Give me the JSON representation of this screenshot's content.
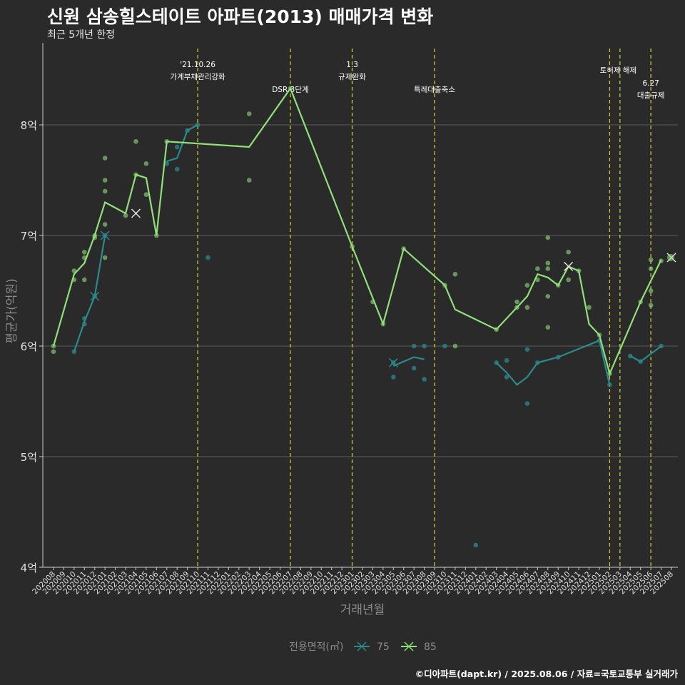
{
  "title": "신원 삼송힐스테이트 아파트(2013) 매매가격 변화",
  "subtitle": "최근 5개년 한정",
  "caption": "©디아파트(dapt.kr) / 2025.08.06 / 자료=국토교통부 실거래가",
  "colors": {
    "background": "#2b2a2b",
    "grid": "#5a5a5a",
    "series_75": "#2a8a8c",
    "series_85": "#90e07a",
    "event_line": "#c8c832"
  },
  "chart_data": {
    "type": "line",
    "xlabel": "거래년월",
    "ylabel": "평균가(억원)",
    "x_categories": [
      "202008",
      "202009",
      "202010",
      "202011",
      "202012",
      "202101",
      "202102",
      "202103",
      "202104",
      "202105",
      "202106",
      "202107",
      "202108",
      "202109",
      "202110",
      "202111",
      "202112",
      "202201",
      "202202",
      "202203",
      "202204",
      "202205",
      "202206",
      "202207",
      "202208",
      "202209",
      "202210",
      "202211",
      "202212",
      "202301",
      "202302",
      "202303",
      "202304",
      "202305",
      "202306",
      "202307",
      "202308",
      "202309",
      "202310",
      "202311",
      "202312",
      "202401",
      "202402",
      "202403",
      "202404",
      "202405",
      "202406",
      "202407",
      "202408",
      "202409",
      "202410",
      "202411",
      "202412",
      "202501",
      "202502",
      "202503",
      "202504",
      "202505",
      "202506",
      "202507",
      "202508"
    ],
    "y_ticks": [
      {
        "value": 4,
        "label": "4억"
      },
      {
        "value": 5,
        "label": "5억"
      },
      {
        "value": 6,
        "label": "6억"
      },
      {
        "value": 7,
        "label": "7억"
      },
      {
        "value": 8,
        "label": "8억"
      }
    ],
    "ylim": [
      4,
      8.8
    ],
    "grid": true,
    "legend": {
      "title": "전용면적(㎡)",
      "position": "bottom"
    },
    "events": [
      {
        "x": "202110",
        "text": [
          "'21.10.26",
          "가계부채관리강화"
        ]
      },
      {
        "x": "202207",
        "text": [
          "DSR 3단계"
        ]
      },
      {
        "x": "202301",
        "text": [
          "1.3",
          "규제완화"
        ]
      },
      {
        "x": "202309",
        "text": [
          "특례대출축소"
        ]
      },
      {
        "x": "202502",
        "text": [
          "토허제 해제"
        ]
      },
      {
        "x": "202503",
        "text": [
          ""
        ]
      },
      {
        "x": "202506",
        "text": [
          "6.27",
          "대출규제"
        ]
      }
    ],
    "series": [
      {
        "name": "75",
        "line": [
          [
            "202010",
            5.95
          ],
          [
            "202011",
            6.22
          ],
          [
            "202012",
            6.45
          ],
          [
            "202101",
            7.0
          ]
        ],
        "line2": [
          [
            "202107",
            7.67
          ],
          [
            "202108",
            7.7
          ],
          [
            "202109",
            7.95
          ],
          [
            "202110",
            8.0
          ]
        ],
        "line3": [
          [
            "202305",
            5.82
          ],
          [
            "202307",
            5.9
          ],
          [
            "202308",
            5.88
          ]
        ],
        "line4": [
          [
            "202403",
            5.85
          ],
          [
            "202404",
            5.76
          ],
          [
            "202405",
            5.65
          ],
          [
            "202406",
            5.72
          ],
          [
            "202407",
            5.85
          ],
          [
            "202409",
            5.9
          ],
          [
            "202501",
            6.05
          ],
          [
            "202502",
            5.65
          ]
        ],
        "line5": [
          [
            "202504",
            5.91
          ],
          [
            "202505",
            5.86
          ],
          [
            "202507",
            6.0
          ]
        ],
        "points": [
          [
            "202010",
            5.95
          ],
          [
            "202011",
            6.2
          ],
          [
            "202011",
            6.25
          ],
          [
            "202012",
            6.45
          ],
          [
            "202101",
            7.0
          ],
          [
            "202107",
            7.65
          ],
          [
            "202108",
            7.6
          ],
          [
            "202108",
            7.8
          ],
          [
            "202109",
            7.95
          ],
          [
            "202110",
            8.0
          ],
          [
            "202111",
            6.8
          ],
          [
            "202305",
            5.72
          ],
          [
            "202305",
            5.85
          ],
          [
            "202307",
            6.0
          ],
          [
            "202307",
            5.8
          ],
          [
            "202308",
            5.7
          ],
          [
            "202308",
            6.0
          ],
          [
            "202310",
            6.0
          ],
          [
            "202401",
            4.2
          ],
          [
            "202403",
            5.85
          ],
          [
            "202404",
            5.87
          ],
          [
            "202404",
            5.72
          ],
          [
            "202406",
            5.48
          ],
          [
            "202406",
            5.97
          ],
          [
            "202407",
            5.85
          ],
          [
            "202409",
            5.9
          ],
          [
            "202501",
            6.05
          ],
          [
            "202502",
            5.65
          ],
          [
            "202504",
            5.91
          ],
          [
            "202505",
            5.86
          ],
          [
            "202507",
            6.0
          ]
        ],
        "latest": [
          "202508",
          6.8
        ]
      },
      {
        "name": "85",
        "line": [
          [
            "202008",
            6.0
          ],
          [
            "202010",
            6.65
          ],
          [
            "202011",
            6.75
          ],
          [
            "202012",
            7.0
          ],
          [
            "202101",
            7.3
          ],
          [
            "202103",
            7.2
          ],
          [
            "202104",
            7.55
          ],
          [
            "202105",
            7.52
          ],
          [
            "202106",
            7.0
          ],
          [
            "202107",
            7.85
          ],
          [
            "202203",
            7.8
          ],
          [
            "202207",
            8.33
          ],
          [
            "202301",
            6.9
          ],
          [
            "202304",
            6.2
          ],
          [
            "202306",
            6.88
          ],
          [
            "202310",
            6.55
          ],
          [
            "202311",
            6.33
          ],
          [
            "202403",
            6.15
          ],
          [
            "202405",
            6.35
          ],
          [
            "202406",
            6.45
          ],
          [
            "202407",
            6.65
          ],
          [
            "202408",
            6.62
          ],
          [
            "202409",
            6.55
          ],
          [
            "202410",
            6.72
          ],
          [
            "202411",
            6.68
          ],
          [
            "202412",
            6.2
          ],
          [
            "202501",
            6.1
          ],
          [
            "202502",
            5.75
          ],
          [
            "202505",
            6.4
          ],
          [
            "202507",
            6.78
          ]
        ],
        "points": [
          [
            "202008",
            6.0
          ],
          [
            "202008",
            5.95
          ],
          [
            "202010",
            6.68
          ],
          [
            "202010",
            6.6
          ],
          [
            "202011",
            6.85
          ],
          [
            "202011",
            6.8
          ],
          [
            "202011",
            6.6
          ],
          [
            "202012",
            7.0
          ],
          [
            "202012",
            6.98
          ],
          [
            "202101",
            7.7
          ],
          [
            "202101",
            7.5
          ],
          [
            "202101",
            7.4
          ],
          [
            "202101",
            7.1
          ],
          [
            "202101",
            6.8
          ],
          [
            "202103",
            7.18
          ],
          [
            "202104",
            7.85
          ],
          [
            "202104",
            7.55
          ],
          [
            "202105",
            7.65
          ],
          [
            "202105",
            7.37
          ],
          [
            "202106",
            7.0
          ],
          [
            "202107",
            7.85
          ],
          [
            "202203",
            8.1
          ],
          [
            "202203",
            7.5
          ],
          [
            "202207",
            8.33
          ],
          [
            "202301",
            6.9
          ],
          [
            "202303",
            6.4
          ],
          [
            "202304",
            6.2
          ],
          [
            "202306",
            6.88
          ],
          [
            "202310",
            6.55
          ],
          [
            "202311",
            6.65
          ],
          [
            "202311",
            6.0
          ],
          [
            "202403",
            6.15
          ],
          [
            "202405",
            6.4
          ],
          [
            "202405",
            6.35
          ],
          [
            "202406",
            6.55
          ],
          [
            "202406",
            6.35
          ],
          [
            "202407",
            6.7
          ],
          [
            "202407",
            6.6
          ],
          [
            "202408",
            6.98
          ],
          [
            "202408",
            6.75
          ],
          [
            "202408",
            6.7
          ],
          [
            "202408",
            6.45
          ],
          [
            "202408",
            6.17
          ],
          [
            "202409",
            6.55
          ],
          [
            "202410",
            6.85
          ],
          [
            "202410",
            6.6
          ],
          [
            "202411",
            6.68
          ],
          [
            "202412",
            6.35
          ],
          [
            "202501",
            6.1
          ],
          [
            "202502",
            5.75
          ],
          [
            "202505",
            6.4
          ],
          [
            "202506",
            6.78
          ],
          [
            "202506",
            6.7
          ],
          [
            "202506",
            6.5
          ],
          [
            "202506",
            6.37
          ],
          [
            "202507",
            6.77
          ]
        ],
        "markers": [
          [
            "202104",
            7.2
          ],
          [
            "202410",
            6.72
          ]
        ],
        "latest": [
          "202508",
          6.8
        ]
      }
    ],
    "series_markers_75": [
      [
        "202012",
        6.45
      ],
      [
        "202101",
        7.0
      ],
      [
        "202305",
        5.85
      ]
    ]
  }
}
